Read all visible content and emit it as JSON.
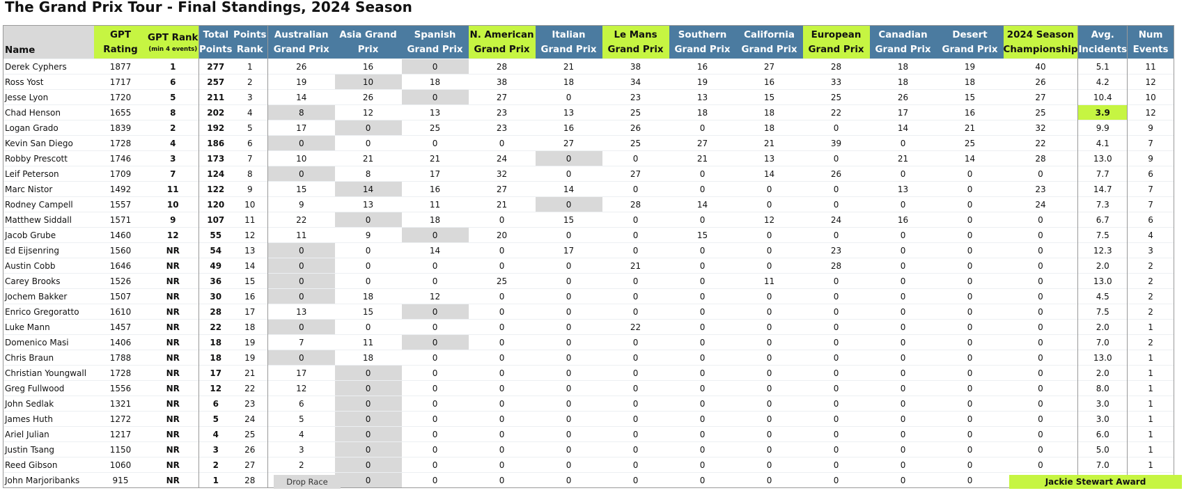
{
  "title": "The Grand Prix Tour - Final Standings, 2024 Season",
  "colors": {
    "name_header_bg": "#d9d9d9",
    "green_header_bg": "#c6f542",
    "blue_header_bg": "#4b7ba0",
    "drop_race_bg": "#d9d9d9",
    "award_bg": "#c6f542"
  },
  "columns": [
    {
      "label": "Name",
      "style": "gray"
    },
    {
      "label": "GPT Rating",
      "style": "green"
    },
    {
      "label": "GPT Rank",
      "sublabel": "(min 4 events)",
      "style": "green"
    },
    {
      "label": "Total Points",
      "style": "blue"
    },
    {
      "label": "Points Rank",
      "style": "blue"
    },
    {
      "label": "Australian Grand Prix",
      "style": "blue"
    },
    {
      "label": "Asia Grand Prix",
      "style": "blue"
    },
    {
      "label": "Spanish Grand Prix",
      "style": "blue"
    },
    {
      "label": "N. American Grand Prix",
      "style": "green"
    },
    {
      "label": "Italian Grand Prix",
      "style": "blue"
    },
    {
      "label": "Le Mans Grand Prix",
      "style": "green"
    },
    {
      "label": "Southern Grand Prix",
      "style": "blue"
    },
    {
      "label": "California Grand Prix",
      "style": "blue"
    },
    {
      "label": "European Grand Prix",
      "style": "green"
    },
    {
      "label": "Canadian Grand Prix",
      "style": "blue"
    },
    {
      "label": "Desert Grand Prix",
      "style": "blue"
    },
    {
      "label": "2024 Season Championship",
      "style": "green"
    },
    {
      "label": "Avg. Incidents",
      "style": "blue"
    },
    {
      "label": "Num Events",
      "style": "blue"
    }
  ],
  "rows": [
    {
      "cells": [
        "Derek Cyphers",
        "1877",
        "1",
        "277",
        "1",
        "26",
        "16",
        "0",
        "28",
        "21",
        "38",
        "16",
        "27",
        "28",
        "18",
        "19",
        "40",
        "5.1",
        "11"
      ],
      "drop": [
        7
      ]
    },
    {
      "cells": [
        "Ross Yost",
        "1717",
        "6",
        "257",
        "2",
        "19",
        "10",
        "18",
        "38",
        "18",
        "34",
        "19",
        "16",
        "33",
        "18",
        "18",
        "26",
        "4.2",
        "12"
      ],
      "drop": [
        6
      ]
    },
    {
      "cells": [
        "Jesse Lyon",
        "1720",
        "5",
        "211",
        "3",
        "14",
        "26",
        "0",
        "27",
        "0",
        "23",
        "13",
        "15",
        "25",
        "26",
        "15",
        "27",
        "10.4",
        "10"
      ],
      "drop": [
        7
      ]
    },
    {
      "cells": [
        "Chad Henson",
        "1655",
        "8",
        "202",
        "4",
        "8",
        "12",
        "13",
        "23",
        "13",
        "25",
        "18",
        "18",
        "22",
        "17",
        "16",
        "25",
        "3.9",
        "12"
      ],
      "drop": [
        5
      ],
      "award": [
        17
      ]
    },
    {
      "cells": [
        "Logan Grado",
        "1839",
        "2",
        "192",
        "5",
        "17",
        "0",
        "25",
        "23",
        "16",
        "26",
        "0",
        "18",
        "0",
        "14",
        "21",
        "32",
        "9.9",
        "9"
      ],
      "drop": [
        6
      ]
    },
    {
      "cells": [
        "Kevin San Diego",
        "1728",
        "4",
        "186",
        "6",
        "0",
        "0",
        "0",
        "0",
        "27",
        "25",
        "27",
        "21",
        "39",
        "0",
        "25",
        "22",
        "4.1",
        "7"
      ],
      "drop": [
        5
      ]
    },
    {
      "cells": [
        "Robby Prescott",
        "1746",
        "3",
        "173",
        "7",
        "10",
        "21",
        "21",
        "24",
        "0",
        "0",
        "21",
        "13",
        "0",
        "21",
        "14",
        "28",
        "13.0",
        "9"
      ],
      "drop": [
        9
      ]
    },
    {
      "cells": [
        "Leif Peterson",
        "1709",
        "7",
        "124",
        "8",
        "0",
        "8",
        "17",
        "32",
        "0",
        "27",
        "0",
        "14",
        "26",
        "0",
        "0",
        "0",
        "7.7",
        "6"
      ],
      "drop": [
        5
      ]
    },
    {
      "cells": [
        "Marc Nistor",
        "1492",
        "11",
        "122",
        "9",
        "15",
        "14",
        "16",
        "27",
        "14",
        "0",
        "0",
        "0",
        "0",
        "13",
        "0",
        "23",
        "14.7",
        "7"
      ],
      "drop": [
        6
      ]
    },
    {
      "cells": [
        "Rodney Campell",
        "1557",
        "10",
        "120",
        "10",
        "9",
        "13",
        "11",
        "21",
        "0",
        "28",
        "14",
        "0",
        "0",
        "0",
        "0",
        "24",
        "7.3",
        "7"
      ],
      "drop": [
        9
      ]
    },
    {
      "cells": [
        "Matthew Siddall",
        "1571",
        "9",
        "107",
        "11",
        "22",
        "0",
        "18",
        "0",
        "15",
        "0",
        "0",
        "12",
        "24",
        "16",
        "0",
        "0",
        "6.7",
        "6"
      ],
      "drop": [
        6
      ]
    },
    {
      "cells": [
        "Jacob Grube",
        "1460",
        "12",
        "55",
        "12",
        "11",
        "9",
        "0",
        "20",
        "0",
        "0",
        "15",
        "0",
        "0",
        "0",
        "0",
        "0",
        "7.5",
        "4"
      ],
      "drop": [
        7
      ]
    },
    {
      "cells": [
        "Ed Eijsenring",
        "1560",
        "NR",
        "54",
        "13",
        "0",
        "0",
        "14",
        "0",
        "17",
        "0",
        "0",
        "0",
        "23",
        "0",
        "0",
        "0",
        "12.3",
        "3"
      ],
      "drop": [
        5
      ]
    },
    {
      "cells": [
        "Austin Cobb",
        "1646",
        "NR",
        "49",
        "14",
        "0",
        "0",
        "0",
        "0",
        "0",
        "21",
        "0",
        "0",
        "28",
        "0",
        "0",
        "0",
        "2.0",
        "2"
      ],
      "drop": [
        5
      ]
    },
    {
      "cells": [
        "Carey Brooks",
        "1526",
        "NR",
        "36",
        "15",
        "0",
        "0",
        "0",
        "25",
        "0",
        "0",
        "0",
        "11",
        "0",
        "0",
        "0",
        "0",
        "13.0",
        "2"
      ],
      "drop": [
        5
      ]
    },
    {
      "cells": [
        "Jochem Bakker",
        "1507",
        "NR",
        "30",
        "16",
        "0",
        "18",
        "12",
        "0",
        "0",
        "0",
        "0",
        "0",
        "0",
        "0",
        "0",
        "0",
        "4.5",
        "2"
      ],
      "drop": [
        5
      ]
    },
    {
      "cells": [
        "Enrico Gregoratto",
        "1610",
        "NR",
        "28",
        "17",
        "13",
        "15",
        "0",
        "0",
        "0",
        "0",
        "0",
        "0",
        "0",
        "0",
        "0",
        "0",
        "7.5",
        "2"
      ],
      "drop": [
        7
      ]
    },
    {
      "cells": [
        "Luke Mann",
        "1457",
        "NR",
        "22",
        "18",
        "0",
        "0",
        "0",
        "0",
        "0",
        "22",
        "0",
        "0",
        "0",
        "0",
        "0",
        "0",
        "2.0",
        "1"
      ],
      "drop": [
        5
      ]
    },
    {
      "cells": [
        "Domenico Masi",
        "1406",
        "NR",
        "18",
        "19",
        "7",
        "11",
        "0",
        "0",
        "0",
        "0",
        "0",
        "0",
        "0",
        "0",
        "0",
        "0",
        "7.0",
        "2"
      ],
      "drop": [
        7
      ]
    },
    {
      "cells": [
        "Chris Braun",
        "1788",
        "NR",
        "18",
        "19",
        "0",
        "18",
        "0",
        "0",
        "0",
        "0",
        "0",
        "0",
        "0",
        "0",
        "0",
        "0",
        "13.0",
        "1"
      ],
      "drop": [
        5
      ]
    },
    {
      "cells": [
        "Christian Youngwall",
        "1728",
        "NR",
        "17",
        "21",
        "17",
        "0",
        "0",
        "0",
        "0",
        "0",
        "0",
        "0",
        "0",
        "0",
        "0",
        "0",
        "2.0",
        "1"
      ],
      "drop": [
        6
      ]
    },
    {
      "cells": [
        "Greg Fullwood",
        "1556",
        "NR",
        "12",
        "22",
        "12",
        "0",
        "0",
        "0",
        "0",
        "0",
        "0",
        "0",
        "0",
        "0",
        "0",
        "0",
        "8.0",
        "1"
      ],
      "drop": [
        6
      ]
    },
    {
      "cells": [
        "John Sedlak",
        "1321",
        "NR",
        "6",
        "23",
        "6",
        "0",
        "0",
        "0",
        "0",
        "0",
        "0",
        "0",
        "0",
        "0",
        "0",
        "0",
        "3.0",
        "1"
      ],
      "drop": [
        6
      ]
    },
    {
      "cells": [
        "James Huth",
        "1272",
        "NR",
        "5",
        "24",
        "5",
        "0",
        "0",
        "0",
        "0",
        "0",
        "0",
        "0",
        "0",
        "0",
        "0",
        "0",
        "3.0",
        "1"
      ],
      "drop": [
        6
      ]
    },
    {
      "cells": [
        "Ariel Julian",
        "1217",
        "NR",
        "4",
        "25",
        "4",
        "0",
        "0",
        "0",
        "0",
        "0",
        "0",
        "0",
        "0",
        "0",
        "0",
        "0",
        "6.0",
        "1"
      ],
      "drop": [
        6
      ]
    },
    {
      "cells": [
        "Justin Tsang",
        "1150",
        "NR",
        "3",
        "26",
        "3",
        "0",
        "0",
        "0",
        "0",
        "0",
        "0",
        "0",
        "0",
        "0",
        "0",
        "0",
        "5.0",
        "1"
      ],
      "drop": [
        6
      ]
    },
    {
      "cells": [
        "Reed Gibson",
        "1060",
        "NR",
        "2",
        "27",
        "2",
        "0",
        "0",
        "0",
        "0",
        "0",
        "0",
        "0",
        "0",
        "0",
        "0",
        "0",
        "7.0",
        "1"
      ],
      "drop": [
        6
      ]
    },
    {
      "cells": [
        "John Marjoribanks",
        "915",
        "NR",
        "1",
        "28",
        "1",
        "0",
        "0",
        "0",
        "0",
        "0",
        "0",
        "0",
        "0",
        "0",
        "0",
        "0",
        "6.0",
        "1"
      ],
      "drop": [
        6
      ]
    }
  ],
  "legend": {
    "drop_race": "Drop Race",
    "award": "Jackie Stewart Award"
  }
}
